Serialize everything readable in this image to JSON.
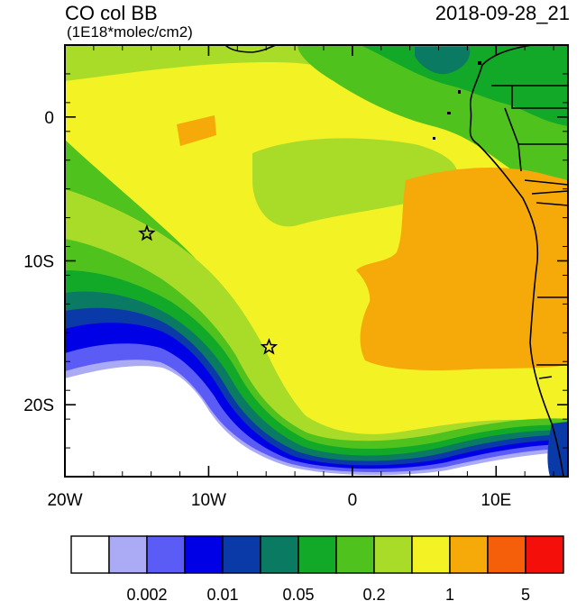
{
  "title": "CO col BB",
  "units": "(1E18*molec/cm2)",
  "datetime": "2018-09-28_21",
  "map": {
    "lon_range": [
      -20,
      15
    ],
    "lat_range": [
      -25,
      5
    ],
    "x_ticks": [
      {
        "lon": -20,
        "label": "20W"
      },
      {
        "lon": -10,
        "label": "10W"
      },
      {
        "lon": 0,
        "label": "0"
      },
      {
        "lon": 10,
        "label": "10E"
      }
    ],
    "y_ticks": [
      {
        "lat": 0,
        "label": "0"
      },
      {
        "lat": -10,
        "label": "10S"
      },
      {
        "lat": -20,
        "label": "20S"
      }
    ],
    "markers": [
      {
        "name": "star-marker-1",
        "lon": -14.3,
        "lat": -8.1
      },
      {
        "name": "star-marker-2",
        "lon": -5.8,
        "lat": -16.0
      }
    ]
  },
  "colorbar": {
    "colors": [
      "#ffffff",
      "#aaaaf5",
      "#5b5bf5",
      "#0000e6",
      "#0a3aa8",
      "#0a7a62",
      "#12a828",
      "#4fc21e",
      "#a8dc28",
      "#f2f224",
      "#f5aa0a",
      "#f55f0a",
      "#f50f0a"
    ],
    "labels": [
      {
        "after_box": 2,
        "text": "0.002"
      },
      {
        "after_box": 4,
        "text": "0.01"
      },
      {
        "after_box": 6,
        "text": "0.05"
      },
      {
        "after_box": 8,
        "text": "0.2"
      },
      {
        "after_box": 10,
        "text": "1"
      },
      {
        "after_box": 12,
        "text": "5"
      }
    ]
  },
  "palette": {
    "white": "#ffffff",
    "light_violet": "#aaaaf5",
    "violet": "#5b5bf5",
    "blue": "#0000e6",
    "dark_blue": "#0a3aa8",
    "teal": "#0a7a62",
    "green": "#12a828",
    "mid_green": "#4fc21e",
    "yellow_green": "#a8dc28",
    "yellow": "#f2f224",
    "orange": "#f5aa0a"
  }
}
